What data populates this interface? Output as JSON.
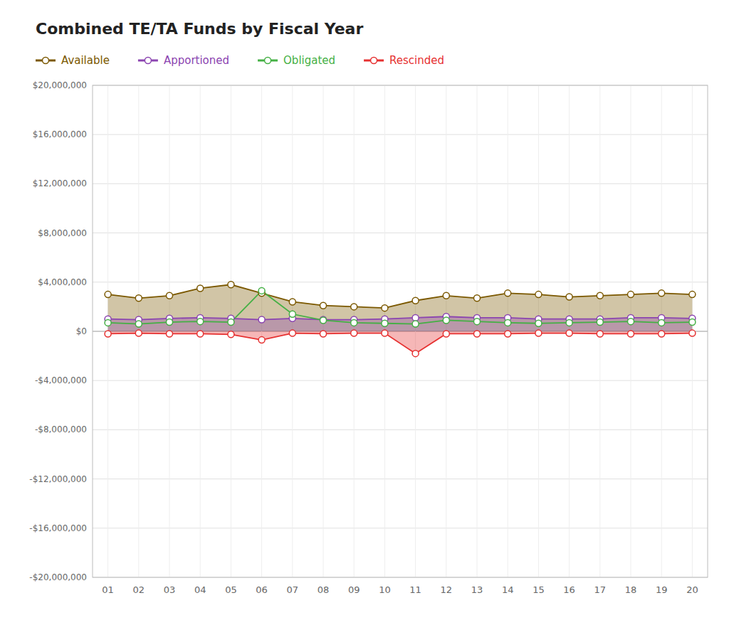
{
  "chart_data": {
    "type": "line",
    "title": "Combined TE/TA Funds by Fiscal Year",
    "categories": [
      "01",
      "02",
      "03",
      "04",
      "05",
      "06",
      "07",
      "08",
      "09",
      "10",
      "11",
      "12",
      "13",
      "14",
      "15",
      "16",
      "17",
      "18",
      "19",
      "20"
    ],
    "series": [
      {
        "name": "Available",
        "color": "#7B5800",
        "type": "area",
        "marker": "circle",
        "values": [
          3000000,
          2700000,
          2900000,
          3500000,
          3800000,
          3100000,
          2400000,
          2100000,
          2000000,
          1900000,
          2500000,
          2900000,
          2700000,
          3100000,
          3000000,
          2800000,
          2900000,
          3000000,
          3100000,
          3000000
        ]
      },
      {
        "name": "Apportioned",
        "color": "#8B44B0",
        "type": "area",
        "marker": "circle",
        "values": [
          1000000,
          950000,
          1050000,
          1100000,
          1050000,
          950000,
          1050000,
          950000,
          950000,
          1000000,
          1100000,
          1200000,
          1100000,
          1100000,
          1000000,
          1000000,
          1000000,
          1100000,
          1100000,
          1050000
        ]
      },
      {
        "name": "Obligated",
        "color": "#44B044",
        "type": "line",
        "marker": "circle",
        "values": [
          700000,
          600000,
          750000,
          800000,
          750000,
          3300000,
          1400000,
          900000,
          700000,
          650000,
          600000,
          900000,
          800000,
          700000,
          650000,
          700000,
          750000,
          800000,
          700000,
          750000
        ]
      },
      {
        "name": "Rescinded",
        "color": "#E63030",
        "type": "area",
        "marker": "circle",
        "values": [
          -200000,
          -150000,
          -200000,
          -200000,
          -250000,
          -700000,
          -150000,
          -200000,
          -150000,
          -150000,
          -1800000,
          -200000,
          -200000,
          -200000,
          -150000,
          -150000,
          -200000,
          -200000,
          -200000,
          -150000
        ]
      }
    ],
    "ylim": [
      -20000000,
      20000000
    ],
    "yticks": [
      {
        "value": -20000000,
        "label": "-$20,000,000"
      },
      {
        "value": -16000000,
        "label": "-$16,000,000"
      },
      {
        "value": -12000000,
        "label": "-$12,000,000"
      },
      {
        "value": -8000000,
        "label": "-$8,000,000"
      },
      {
        "value": -4000000,
        "label": "-$4,000,000"
      },
      {
        "value": 0,
        "label": "$0"
      },
      {
        "value": 4000000,
        "label": "$4,000,000"
      },
      {
        "value": 8000000,
        "label": "$8,000,000"
      },
      {
        "value": 12000000,
        "label": "$12,000,000"
      },
      {
        "value": 16000000,
        "label": "$16,000,000"
      },
      {
        "value": 20000000,
        "label": "$20,000,000"
      }
    ],
    "grid": true,
    "legend": "top"
  }
}
